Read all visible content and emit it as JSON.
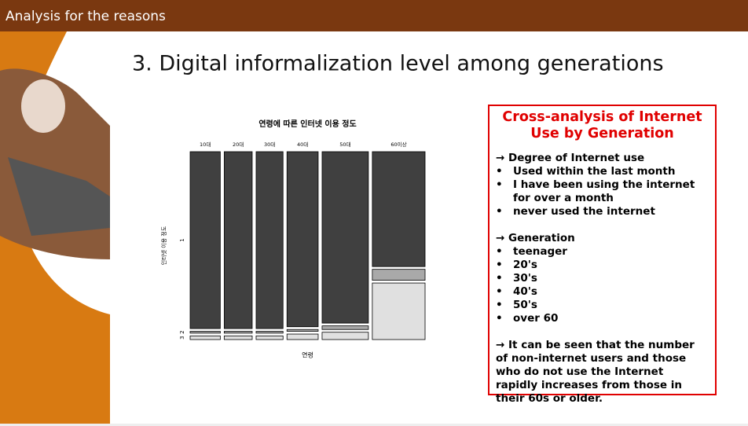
{
  "header": {
    "title": "Analysis for the reasons"
  },
  "slide_title": "3. Digital informalization level among generations",
  "chart_data": {
    "type": "mosaic",
    "title": "연령에 따른 인터넷 이용 정도",
    "x_label": "연령",
    "y_label": "인터넷 이용 정도",
    "categories": [
      "10대",
      "20대",
      "30대",
      "40대",
      "50대",
      "60이상"
    ],
    "widths": [
      14,
      13,
      12.5,
      14.5,
      21.5,
      24.5
    ],
    "levels": [
      "1",
      "2",
      "3"
    ],
    "series": [
      {
        "name": "1",
        "color": "#404040",
        "values": [
          97,
          97,
          97,
          96,
          94,
          63
        ]
      },
      {
        "name": "2",
        "color": "#a9a9a9",
        "values": [
          1,
          1,
          1,
          1,
          2,
          6
        ]
      },
      {
        "name": "3",
        "color": "#e0e0e0",
        "values": [
          2,
          2,
          2,
          3,
          4,
          31
        ]
      }
    ]
  },
  "info_box": {
    "heading": "Cross-analysis of Internet Use by Generation",
    "sections": [
      {
        "title": "→ Degree of Internet use",
        "items": [
          "Used within the last month",
          "I have been using the internet for over a month",
          "never used the internet"
        ]
      },
      {
        "title": "→ Generation",
        "items": [
          "teenager",
          "20's",
          "30's",
          "40's",
          "50's",
          "over 60"
        ]
      }
    ],
    "conclusion": "→ It can be seen that the number of non-internet users and those who do not use the Internet rapidly increases from those in their 60s or older."
  }
}
